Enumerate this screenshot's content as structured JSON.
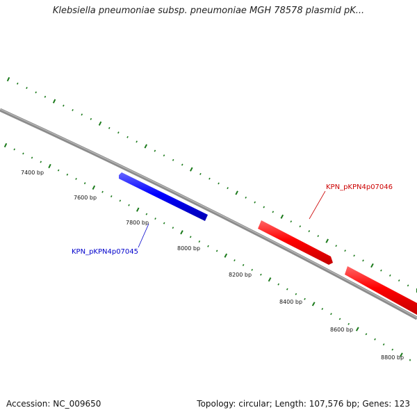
{
  "title": "Klebsiella pneumoniae subsp. pneumoniae MGH 78578 plasmid pK...",
  "footer": {
    "accession": "Accession: NC_009650",
    "summary": "Topology: circular; Length: 107,576 bp; Genes: 123"
  },
  "colors": {
    "backbone": "#8c8c8c",
    "tick": "#1b7a1b",
    "forward_gene": "#ff0000",
    "reverse_gene": "#0000ff",
    "forward_label": "#cc0000",
    "reverse_label": "#0000cc"
  },
  "scale_labels": [
    {
      "text": "7400 bp",
      "bp": 7400
    },
    {
      "text": "7600 bp",
      "bp": 7600
    },
    {
      "text": "7800 bp",
      "bp": 7800
    },
    {
      "text": "8000 bp",
      "bp": 8000
    },
    {
      "text": "8200 bp",
      "bp": 8200
    },
    {
      "text": "8400 bp",
      "bp": 8400
    },
    {
      "text": "8600 bp",
      "bp": 8600
    },
    {
      "text": "8800 bp",
      "bp": 8800
    }
  ],
  "genes": [
    {
      "label": "KPN_pKPN4p07045",
      "strand": "reverse"
    },
    {
      "label": "KPN_pKPN4p07046",
      "strand": "forward"
    }
  ]
}
